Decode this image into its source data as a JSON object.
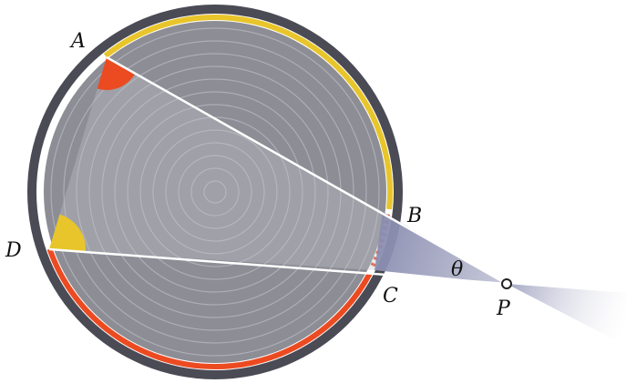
{
  "labels": {
    "A": "A",
    "B": "B",
    "C": "C",
    "D": "D",
    "P": "P",
    "theta": "θ"
  },
  "colors": {
    "outer_ring": "#4b4b55",
    "disc_fill": "#8c8d95",
    "disc_ring_lines": "#c9cad0",
    "yellow_arc": "#e8c52a",
    "red_arc": "#ec4a21",
    "angle_A_fill": "#ec4a21",
    "angle_D_fill": "#e8c52a",
    "chord_lines": "#ffffff",
    "wedge_fill": "#9a9cb8",
    "point_P": "#222222"
  }
}
